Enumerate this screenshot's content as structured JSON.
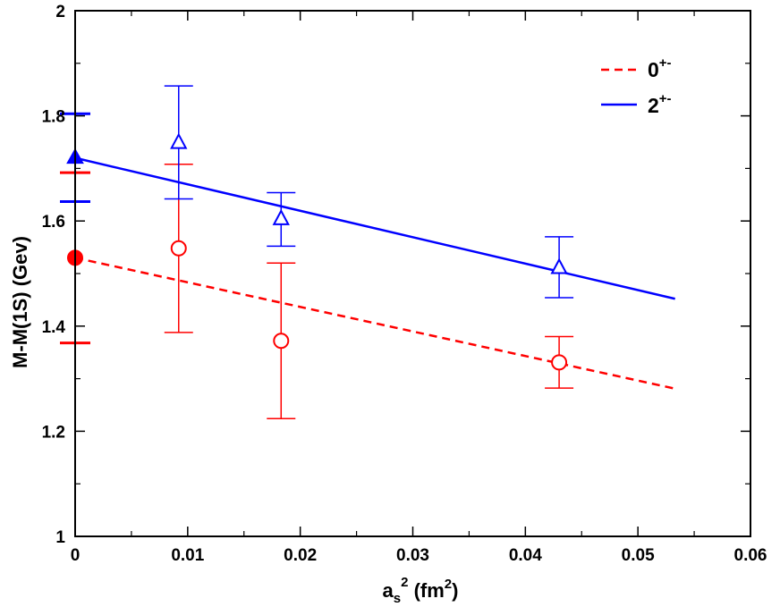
{
  "chart_data": {
    "type": "scatter",
    "xlabel": {
      "main": "a",
      "sub": "s",
      "sup": "2",
      "unit_open": " (fm",
      "unit_sup": "2",
      "unit_close": ")"
    },
    "ylabel": "M-M(1S) (Gev)",
    "xlim": [
      0,
      0.06
    ],
    "ylim": [
      1.0,
      2.0
    ],
    "x_ticks": [
      {
        "value": 0,
        "label": "0"
      },
      {
        "value": 0.01,
        "label": "0.01"
      },
      {
        "value": 0.02,
        "label": "0.02"
      },
      {
        "value": 0.03,
        "label": "0.03"
      },
      {
        "value": 0.04,
        "label": "0.04"
      },
      {
        "value": 0.05,
        "label": "0.05"
      },
      {
        "value": 0.06,
        "label": "0.06"
      }
    ],
    "y_ticks": [
      {
        "value": 1.0,
        "label": "1"
      },
      {
        "value": 1.2,
        "label": "1.2"
      },
      {
        "value": 1.4,
        "label": "1.4"
      },
      {
        "value": 1.6,
        "label": "1.6"
      },
      {
        "value": 1.8,
        "label": "1.8"
      },
      {
        "value": 2.0,
        "label": "2"
      }
    ],
    "x_minor_step": 0.005,
    "y_minor_step": 0.1,
    "grid": false,
    "legend_position": "top-right",
    "series": [
      {
        "name": "0+-",
        "legend_main": "0",
        "legend_sup": "+-",
        "color": "#ff0000",
        "line_style": "dashed",
        "marker": "circle",
        "points": [
          {
            "x": 0.0092,
            "y": 1.548,
            "err_low": 1.388,
            "err_high": 1.708
          },
          {
            "x": 0.0183,
            "y": 1.372,
            "err_low": 1.224,
            "err_high": 1.52
          },
          {
            "x": 0.043,
            "y": 1.331,
            "err_low": 1.282,
            "err_high": 1.38
          }
        ],
        "fit": {
          "x0": 0.0,
          "y0": 1.53,
          "x1": 0.0533,
          "y1": 1.281
        },
        "extrapolated": {
          "x": 0.0,
          "y": 1.53,
          "err_low": 1.368,
          "err_high": 1.692
        }
      },
      {
        "name": "2+-",
        "legend_main": "2",
        "legend_sup": "+-",
        "color": "#0000ff",
        "line_style": "solid",
        "marker": "triangle",
        "points": [
          {
            "x": 0.0092,
            "y": 1.749,
            "err_low": 1.642,
            "err_high": 1.857
          },
          {
            "x": 0.0183,
            "y": 1.604,
            "err_low": 1.552,
            "err_high": 1.654
          },
          {
            "x": 0.043,
            "y": 1.511,
            "err_low": 1.454,
            "err_high": 1.57
          }
        ],
        "fit": {
          "x0": 0.0,
          "y0": 1.72,
          "x1": 0.0533,
          "y1": 1.452
        },
        "extrapolated": {
          "x": 0.0,
          "y": 1.72,
          "err_low": 1.637,
          "err_high": 1.804
        }
      }
    ]
  }
}
